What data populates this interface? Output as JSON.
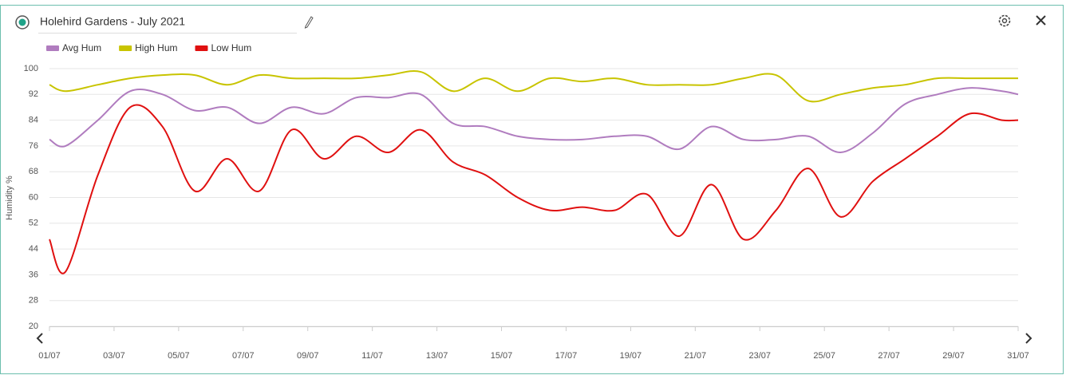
{
  "chart_data": {
    "type": "line",
    "title": "Holehird Gardens - July 2021",
    "y_label": "Humidity %",
    "x": [
      1,
      1.5,
      2.5,
      3.5,
      4.5,
      5.5,
      6.5,
      7.5,
      8.5,
      9.5,
      10.5,
      11.5,
      12.5,
      13.5,
      14.5,
      15.5,
      16.5,
      17.5,
      18.5,
      19.5,
      20.5,
      21.5,
      22.5,
      23.5,
      24.5,
      25.5,
      26.5,
      27.5,
      28.5,
      29.5,
      30.5,
      31
    ],
    "series": [
      {
        "name": "Avg Hum",
        "color": "#b07cbf",
        "values": [
          78,
          76,
          84,
          93,
          92,
          87,
          88,
          83,
          88,
          86,
          91,
          91,
          92,
          83,
          82,
          79,
          78,
          78,
          79,
          79,
          75,
          82,
          78,
          78,
          79,
          74,
          80,
          89,
          92,
          94,
          93,
          92
        ]
      },
      {
        "name": "High Hum",
        "color": "#c8c400",
        "values": [
          95,
          93,
          95,
          97,
          98,
          98,
          95,
          98,
          97,
          97,
          97,
          98,
          99,
          93,
          97,
          93,
          97,
          96,
          97,
          95,
          95,
          95,
          97,
          98,
          90,
          92,
          94,
          95,
          97,
          97,
          97,
          97
        ]
      },
      {
        "name": "Low Hum",
        "color": "#e01010",
        "values": [
          47,
          37,
          67,
          88,
          82,
          62,
          72,
          62,
          81,
          72,
          79,
          74,
          81,
          71,
          67,
          60,
          56,
          57,
          56,
          61,
          48,
          64,
          47,
          56,
          69,
          54,
          65,
          72,
          79,
          86,
          84,
          84
        ]
      }
    ],
    "xlim": [
      1,
      31
    ],
    "xticks": [
      {
        "value": 1,
        "label": "01/07"
      },
      {
        "value": 3,
        "label": "03/07"
      },
      {
        "value": 5,
        "label": "05/07"
      },
      {
        "value": 7,
        "label": "07/07"
      },
      {
        "value": 9,
        "label": "09/07"
      },
      {
        "value": 11,
        "label": "11/07"
      },
      {
        "value": 13,
        "label": "13/07"
      },
      {
        "value": 15,
        "label": "15/07"
      },
      {
        "value": 17,
        "label": "17/07"
      },
      {
        "value": 19,
        "label": "19/07"
      },
      {
        "value": 21,
        "label": "21/07"
      },
      {
        "value": 23,
        "label": "23/07"
      },
      {
        "value": 25,
        "label": "25/07"
      },
      {
        "value": 27,
        "label": "27/07"
      },
      {
        "value": 29,
        "label": "29/07"
      },
      {
        "value": 31,
        "label": "31/07"
      }
    ],
    "ylim": [
      20,
      100
    ],
    "yticks": [
      20,
      28,
      36,
      44,
      52,
      60,
      68,
      76,
      84,
      92,
      100
    ],
    "grid": true,
    "legend": "top-left"
  }
}
